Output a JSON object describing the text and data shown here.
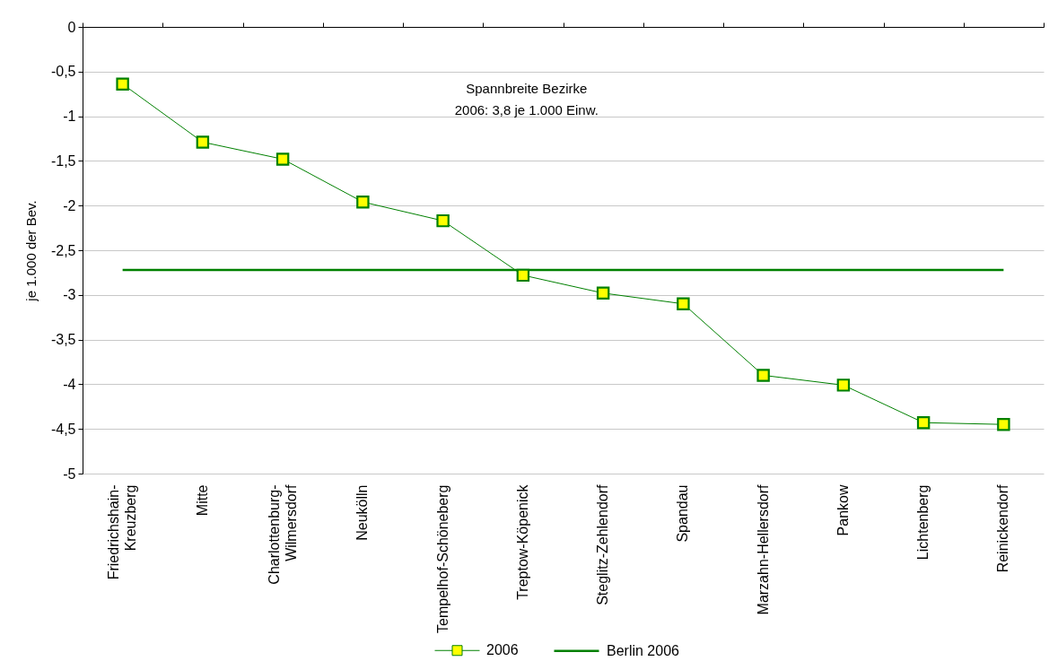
{
  "chart_data": {
    "type": "line",
    "categories": [
      "Friedrichshain-\nKreuzberg",
      "Mitte",
      "Charlottenburg-\nWilmersdorf",
      "Neukölln",
      "Tempelhof-Schöneberg",
      "Treptow-Köpenick",
      "Steglitz-Zehlendorf",
      "Spandau",
      "Marzahn-Hellersdorf",
      "Pankow",
      "Lichtenberg",
      "Reinickendorf"
    ],
    "series": [
      {
        "name": "2006",
        "color": "#008000",
        "values": [
          -0.64,
          -1.29,
          -1.48,
          -1.96,
          -2.17,
          -2.78,
          -2.98,
          -3.1,
          -3.9,
          -4.01,
          -4.43,
          -4.45
        ]
      },
      {
        "name": "Berlin 2006",
        "color": "#008000",
        "marker": "none",
        "values": [
          -2.72,
          -2.72,
          -2.72,
          -2.72,
          -2.72,
          -2.72,
          -2.72,
          -2.72,
          -2.72,
          -2.72,
          -2.72,
          -2.72
        ]
      }
    ],
    "ylabel": "je 1.000 der Bev.",
    "ylim": [
      -5,
      0
    ],
    "yticks": [
      0,
      {
        "value": -0.5,
        "label": "-0,5"
      },
      -1,
      {
        "value": -1.5,
        "label": "-1,5"
      },
      -2,
      {
        "value": -2.5,
        "label": "-2,5"
      },
      -3,
      {
        "value": -3.5,
        "label": "-3,5"
      },
      -4,
      {
        "value": -4.5,
        "label": "-4,5"
      },
      -5
    ],
    "annotations": [
      "Spannbreite Bezirke\n2006: 3,8 je 1.000 Einw."
    ],
    "grid": "y",
    "legend": "bottom",
    "marker": "square"
  }
}
